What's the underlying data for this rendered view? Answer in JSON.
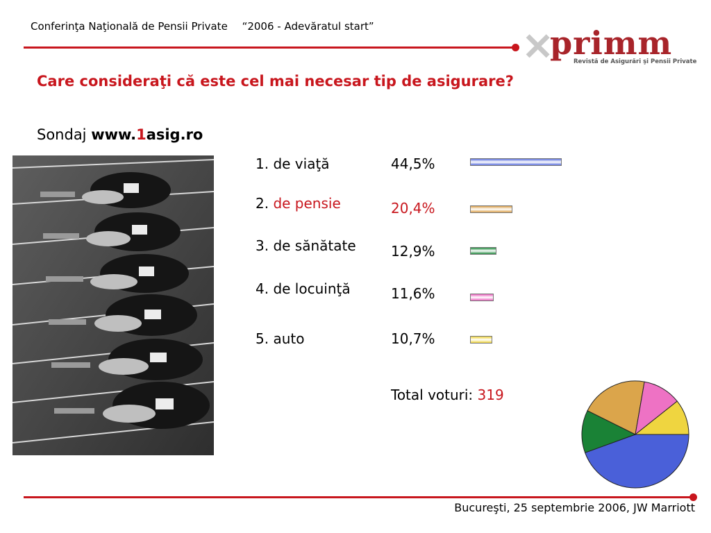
{
  "header": {
    "conference": "Conferinţa Naţională de Pensii Private",
    "motto": "“2006 - Adevăratul start”"
  },
  "logo": {
    "brand": "primm",
    "tagline": "Revistă de Asigurări şi Pensii Private"
  },
  "question": "Care consideraţi că este cel mai necesar tip de asigurare?",
  "survey": {
    "prefix": "Sondaj",
    "site_a": "www.",
    "site_b": "1",
    "site_c": "asig.ro"
  },
  "photo": {
    "icon": "sprinters-start-photo"
  },
  "chart_data": {
    "type": "bar",
    "categories": [
      "1. de viaţă",
      "2. de pensie",
      "3. de sănătate",
      "4. de locuinţă",
      "5. auto"
    ],
    "label_prefixes": [
      "1. de viaţă",
      "2. ",
      "3. de sănătate",
      "4. de locuinţă",
      "5. auto"
    ],
    "highlight_text": "de pensie",
    "values": [
      44.5,
      20.4,
      12.9,
      11.6,
      10.7
    ],
    "value_labels": [
      "44,5%",
      "20,4%",
      "12,9%",
      "11,6%",
      "10,7%"
    ],
    "colors": [
      "#5b6fdc",
      "#dca04a",
      "#1e8a3c",
      "#ec62bf",
      "#efd43c"
    ],
    "highlight_index": 1,
    "pie_colors": [
      "#4a60d9",
      "#1a8236",
      "#dba54b",
      "#ee72c4",
      "#efd540"
    ],
    "pie_order": [
      0,
      2,
      1,
      3,
      4
    ],
    "total_label": "Total voturi:",
    "total_value": "319"
  },
  "colors": {
    "accent": "#c8161d"
  },
  "footer": "Bucureşti, 25 septembrie 2006, JW Marriott"
}
